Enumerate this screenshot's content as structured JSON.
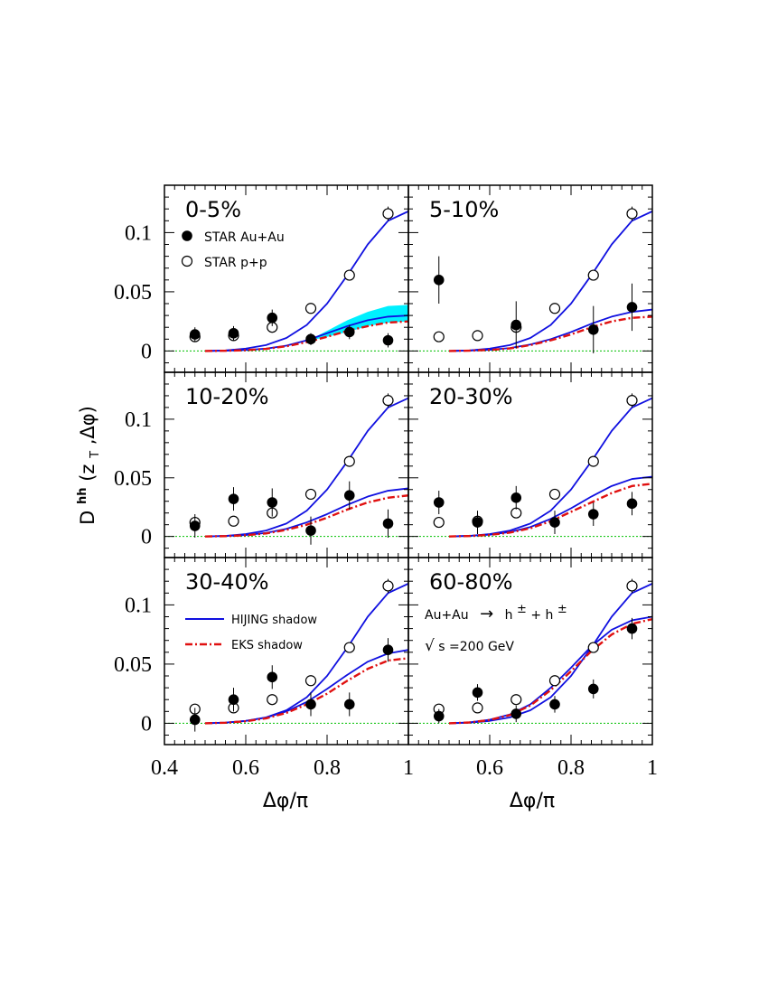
{
  "figure": {
    "ylabel": "D^{hh}(z_T,Δφ)",
    "ylabel_main": "D",
    "ylabel_sup": "hh",
    "ylabel_args": "(z",
    "ylabel_sub": "T",
    "ylabel_rest": ",Δφ)",
    "xlabel": "Δφ/π",
    "legend": {
      "star_auau": "STAR Au+Au",
      "star_pp": "STAR p+p",
      "hijing": "HIJING shadow",
      "eks": "EKS shadow"
    },
    "process_label": "Au+Au → h±+h±",
    "process_parts": {
      "lhs": "Au+Au",
      "arrow": "→",
      "h1": "h",
      "pm1": "±",
      "plus": "+",
      "h2": "h",
      "pm2": "±"
    },
    "energy_label": "√s=200 GeV",
    "energy_parts": {
      "sqrt": "√",
      "s": "s",
      "rest": "=200 GeV"
    },
    "colors": {
      "hijing": "#1010e0",
      "eks": "#e01010",
      "band": "#00f0ff",
      "zero_line": "#00c000"
    }
  },
  "chart_data": {
    "type": "scatter",
    "xlim": [
      0.4,
      1.0
    ],
    "ylim": [
      -0.018,
      0.14
    ],
    "x_ticks": [
      0.4,
      0.6,
      0.8,
      1
    ],
    "x_tick_labels": [
      "0.4",
      "0.6",
      "0.8",
      "1"
    ],
    "y_ticks": [
      0,
      0.05,
      0.1
    ],
    "y_tick_labels": [
      "0",
      "0.05",
      "0.1"
    ],
    "layout": "3 rows x 2 columns",
    "x_points": [
      0.475,
      0.57,
      0.665,
      0.76,
      0.855,
      0.95
    ],
    "pp_points": [
      0.012,
      0.013,
      0.02,
      0.036,
      0.064,
      0.116
    ],
    "pp_errors": [
      0.002,
      0.002,
      0.003,
      0.003,
      0.004,
      0.006
    ],
    "hijing_pp_curve": {
      "x": [
        0.5,
        0.55,
        0.6,
        0.65,
        0.7,
        0.75,
        0.8,
        0.85,
        0.9,
        0.95,
        1.0
      ],
      "y": [
        0.0,
        0.0005,
        0.002,
        0.005,
        0.011,
        0.022,
        0.04,
        0.064,
        0.09,
        0.11,
        0.118
      ]
    },
    "panels": [
      {
        "label": "0-5%",
        "auau": [
          0.014,
          0.015,
          0.028,
          0.01,
          0.016,
          0.009
        ],
        "auau_err": [
          0.006,
          0.006,
          0.007,
          0.005,
          0.006,
          0.006
        ],
        "hijing_aa_curve": {
          "x": [
            0.5,
            0.55,
            0.6,
            0.65,
            0.7,
            0.75,
            0.8,
            0.85,
            0.9,
            0.95,
            1.0
          ],
          "y": [
            0.0,
            0.0002,
            0.0008,
            0.002,
            0.0045,
            0.009,
            0.015,
            0.021,
            0.026,
            0.029,
            0.03
          ]
        },
        "eks_aa_curve": {
          "x": [
            0.5,
            0.55,
            0.6,
            0.65,
            0.7,
            0.75,
            0.8,
            0.85,
            0.9,
            0.95,
            1.0
          ],
          "y": [
            0.0,
            0.0002,
            0.0007,
            0.0018,
            0.004,
            0.0075,
            0.012,
            0.017,
            0.021,
            0.024,
            0.025
          ]
        },
        "band": {
          "x": [
            0.76,
            0.8,
            0.85,
            0.9,
            0.95,
            1.0
          ],
          "lower": [
            0.009,
            0.012,
            0.016,
            0.021,
            0.024,
            0.025
          ],
          "upper": [
            0.01,
            0.017,
            0.026,
            0.033,
            0.038,
            0.039
          ]
        }
      },
      {
        "label": "5-10%",
        "auau": [
          0.06,
          null,
          0.022,
          null,
          0.018,
          0.037
        ],
        "auau_err": [
          0.02,
          null,
          0.02,
          null,
          0.02,
          0.02
        ],
        "hijing_aa_curve": {
          "x": [
            0.5,
            0.55,
            0.6,
            0.65,
            0.7,
            0.75,
            0.8,
            0.85,
            0.9,
            0.95,
            1.0
          ],
          "y": [
            0.0,
            0.0003,
            0.001,
            0.0025,
            0.0055,
            0.01,
            0.016,
            0.023,
            0.029,
            0.033,
            0.035
          ]
        },
        "eks_aa_curve": {
          "x": [
            0.5,
            0.55,
            0.6,
            0.65,
            0.7,
            0.75,
            0.8,
            0.85,
            0.9,
            0.95,
            1.0
          ],
          "y": [
            0.0,
            0.0003,
            0.0009,
            0.0022,
            0.005,
            0.009,
            0.014,
            0.02,
            0.025,
            0.028,
            0.029
          ]
        },
        "band": null
      },
      {
        "label": "10-20%",
        "auau": [
          0.009,
          0.032,
          0.029,
          0.005,
          0.035,
          0.011
        ],
        "auau_err": [
          0.01,
          0.01,
          0.012,
          0.012,
          0.012,
          0.012
        ],
        "hijing_aa_curve": {
          "x": [
            0.5,
            0.55,
            0.6,
            0.65,
            0.7,
            0.75,
            0.8,
            0.85,
            0.9,
            0.95,
            1.0
          ],
          "y": [
            0.0,
            0.0004,
            0.0012,
            0.003,
            0.0065,
            0.012,
            0.019,
            0.027,
            0.034,
            0.039,
            0.041
          ]
        },
        "eks_aa_curve": {
          "x": [
            0.5,
            0.55,
            0.6,
            0.65,
            0.7,
            0.75,
            0.8,
            0.85,
            0.9,
            0.95,
            1.0
          ],
          "y": [
            0.0,
            0.0003,
            0.001,
            0.0026,
            0.0056,
            0.01,
            0.016,
            0.023,
            0.029,
            0.033,
            0.035
          ]
        },
        "band": null
      },
      {
        "label": "20-30%",
        "auau": [
          0.029,
          0.012,
          0.033,
          0.012,
          0.019,
          0.028
        ],
        "auau_err": [
          0.01,
          0.01,
          0.01,
          0.01,
          0.01,
          0.01
        ],
        "hijing_aa_curve": {
          "x": [
            0.5,
            0.55,
            0.6,
            0.65,
            0.7,
            0.75,
            0.8,
            0.85,
            0.9,
            0.95,
            1.0
          ],
          "y": [
            0.0,
            0.0005,
            0.0015,
            0.0038,
            0.008,
            0.015,
            0.024,
            0.034,
            0.043,
            0.049,
            0.051
          ]
        },
        "eks_aa_curve": {
          "x": [
            0.5,
            0.55,
            0.6,
            0.65,
            0.7,
            0.75,
            0.8,
            0.85,
            0.9,
            0.95,
            1.0
          ],
          "y": [
            0.0,
            0.0004,
            0.0013,
            0.0033,
            0.007,
            0.013,
            0.021,
            0.029,
            0.037,
            0.043,
            0.045
          ]
        },
        "band": null
      },
      {
        "label": "30-40%",
        "auau": [
          0.003,
          0.02,
          0.039,
          0.016,
          0.016,
          0.062
        ],
        "auau_err": [
          0.01,
          0.01,
          0.01,
          0.01,
          0.01,
          0.01
        ],
        "hijing_aa_curve": {
          "x": [
            0.5,
            0.55,
            0.6,
            0.65,
            0.7,
            0.75,
            0.8,
            0.85,
            0.9,
            0.95,
            1.0
          ],
          "y": [
            0.0,
            0.0006,
            0.002,
            0.0048,
            0.01,
            0.018,
            0.029,
            0.041,
            0.052,
            0.059,
            0.062
          ]
        },
        "eks_aa_curve": {
          "x": [
            0.5,
            0.55,
            0.6,
            0.65,
            0.7,
            0.75,
            0.8,
            0.85,
            0.9,
            0.95,
            1.0
          ],
          "y": [
            0.0,
            0.0005,
            0.0017,
            0.0042,
            0.0088,
            0.016,
            0.025,
            0.036,
            0.046,
            0.053,
            0.055
          ]
        },
        "band": null
      },
      {
        "label": "60-80%",
        "auau": [
          0.006,
          0.026,
          0.008,
          0.016,
          0.029,
          0.08
        ],
        "auau_err": [
          0.006,
          0.007,
          0.007,
          0.007,
          0.008,
          0.009
        ],
        "hijing_aa_curve": {
          "x": [
            0.5,
            0.55,
            0.6,
            0.65,
            0.7,
            0.75,
            0.8,
            0.85,
            0.9,
            0.95,
            1.0
          ],
          "y": [
            0.0,
            0.0008,
            0.003,
            0.0075,
            0.016,
            0.03,
            0.047,
            0.065,
            0.079,
            0.087,
            0.09
          ]
        },
        "eks_aa_curve": {
          "x": [
            0.5,
            0.55,
            0.6,
            0.65,
            0.7,
            0.75,
            0.8,
            0.85,
            0.9,
            0.95,
            1.0
          ],
          "y": [
            0.0,
            0.0007,
            0.0028,
            0.007,
            0.015,
            0.028,
            0.044,
            0.061,
            0.075,
            0.084,
            0.088
          ]
        },
        "band": null
      }
    ]
  }
}
